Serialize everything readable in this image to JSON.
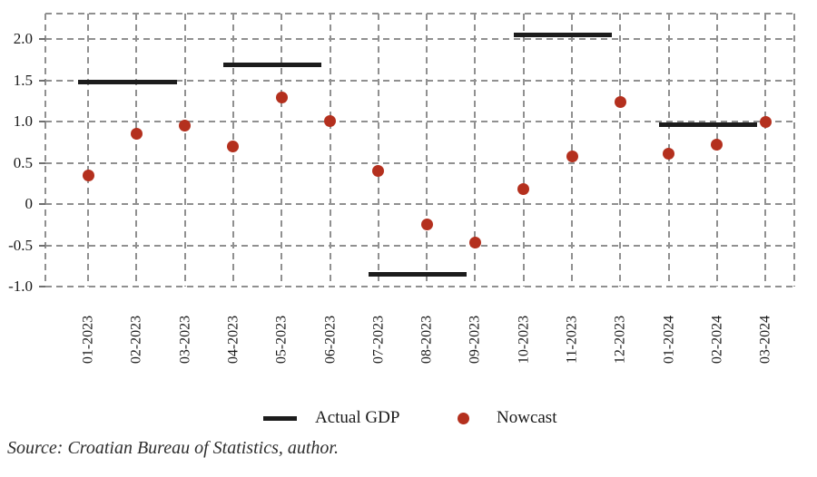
{
  "chart_data": {
    "type": "scatter",
    "title": "",
    "xlabel": "",
    "ylabel": "",
    "categories": [
      "01-2023",
      "02-2023",
      "03-2023",
      "04-2023",
      "05-2023",
      "06-2023",
      "07-2023",
      "08-2023",
      "09-2023",
      "10-2023",
      "11-2023",
      "12-2023",
      "01-2024",
      "02-2024",
      "03-2024"
    ],
    "yticks": [
      {
        "value": 2.0,
        "label": "2.0"
      },
      {
        "value": 1.5,
        "label": "1.5"
      },
      {
        "value": 1.0,
        "label": "1.0"
      },
      {
        "value": 0.5,
        "label": "0.5"
      },
      {
        "value": 0.0,
        "label": "0"
      },
      {
        "value": -0.5,
        "label": "-0.5"
      },
      {
        "value": -1.0,
        "label": "-1.0"
      }
    ],
    "ylim": [
      -1.0,
      2.31
    ],
    "grid": "dashed-horizontal-and-vertical, dashed plot border",
    "legend_position": "bottom-center",
    "series": [
      {
        "name": "Actual GDP",
        "style": "horizontal-segments",
        "color": "#1c1c1c",
        "segments": [
          {
            "from": "01-2023",
            "to": "03-2023",
            "from_index": 0,
            "to_index": 2,
            "value": 1.48
          },
          {
            "from": "04-2023",
            "to": "06-2023",
            "from_index": 3,
            "to_index": 5,
            "value": 1.69
          },
          {
            "from": "07-2023",
            "to": "09-2023",
            "from_index": 6,
            "to_index": 8,
            "value": -0.85
          },
          {
            "from": "10-2023",
            "to": "12-2023",
            "from_index": 9,
            "to_index": 11,
            "value": 2.05
          },
          {
            "from": "01-2024",
            "to": "03-2024",
            "from_index": 12,
            "to_index": 14,
            "value": 0.96
          }
        ]
      },
      {
        "name": "Nowcast",
        "style": "dots",
        "color": "#b4301e",
        "values": [
          0.35,
          0.85,
          0.95,
          0.7,
          1.29,
          1.01,
          0.4,
          -0.25,
          -0.47,
          0.18,
          0.58,
          1.24,
          0.61,
          0.72,
          1.0
        ]
      }
    ]
  },
  "legend": {
    "items": [
      {
        "label": "Actual GDP",
        "marker": "line"
      },
      {
        "label": "Nowcast",
        "marker": "dot"
      }
    ]
  },
  "source_note": "Source: Croatian Bureau of Statistics, author.",
  "colors": {
    "nowcast_red": "#b4301e",
    "actual_black": "#1c1c1c",
    "grid_gray": "#909090",
    "text": "#1a1a1a"
  }
}
